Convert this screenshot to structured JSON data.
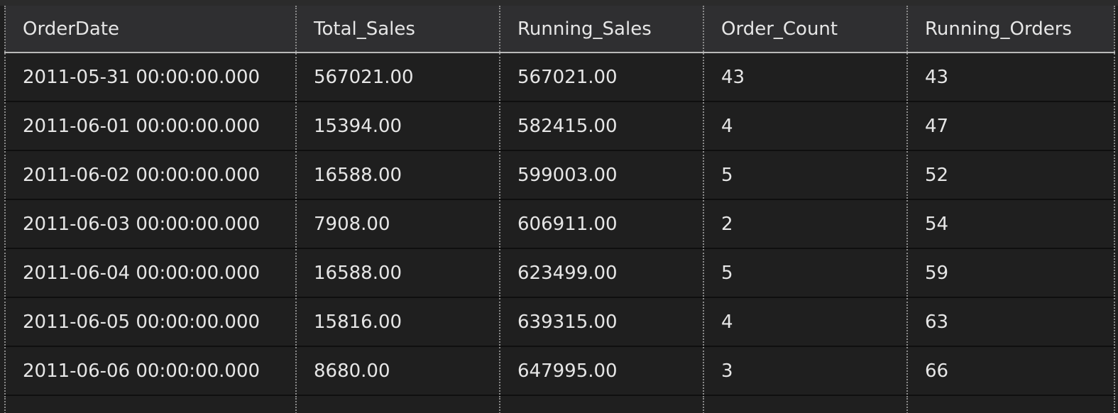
{
  "grid": {
    "columns": [
      "OrderDate",
      "Total_Sales",
      "Running_Sales",
      "Order_Count",
      "Running_Orders"
    ],
    "rows": [
      [
        "2011-05-31 00:00:00.000",
        "567021.00",
        "567021.00",
        "43",
        "43"
      ],
      [
        "2011-06-01 00:00:00.000",
        "15394.00",
        "582415.00",
        "4",
        "47"
      ],
      [
        "2011-06-02 00:00:00.000",
        "16588.00",
        "599003.00",
        "5",
        "52"
      ],
      [
        "2011-06-03 00:00:00.000",
        "7908.00",
        "606911.00",
        "2",
        "54"
      ],
      [
        "2011-06-04 00:00:00.000",
        "16588.00",
        "623499.00",
        "5",
        "59"
      ],
      [
        "2011-06-05 00:00:00.000",
        "15816.00",
        "639315.00",
        "4",
        "63"
      ],
      [
        "2011-06-06 00:00:00.000",
        "8680.00",
        "647995.00",
        "3",
        "66"
      ]
    ]
  },
  "colors": {
    "background": "#1f1f1f",
    "header_background": "#2f2f31",
    "text": "#e6e6e6"
  }
}
